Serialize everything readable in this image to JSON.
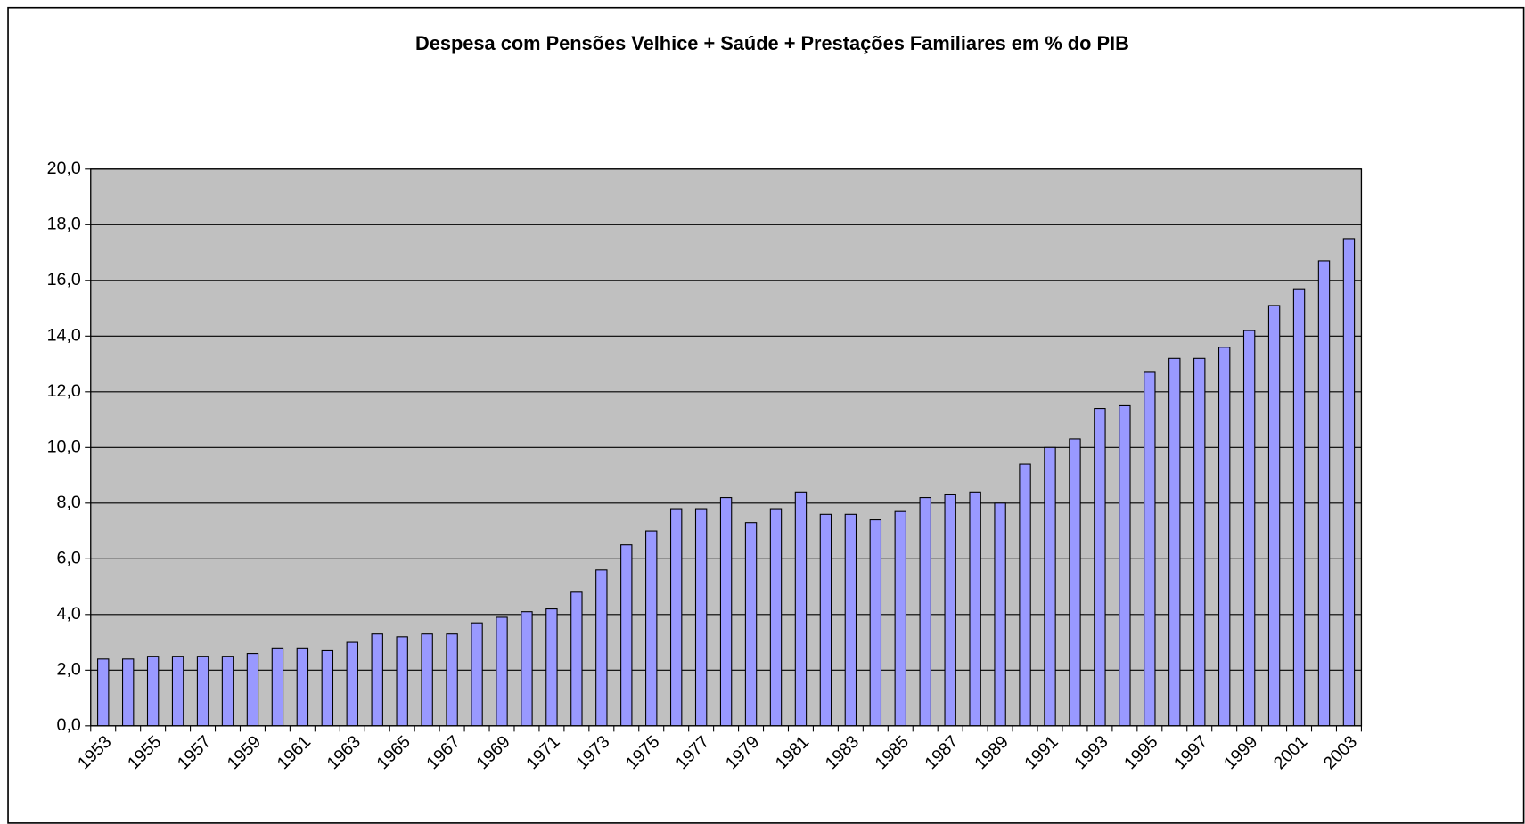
{
  "chart_data": {
    "type": "bar",
    "title": "Despesa com Pensões Velhice + Saúde + Prestações Familiares em % do PIB",
    "categories": [
      "1953",
      null,
      "1955",
      null,
      "1957",
      null,
      "1959",
      null,
      "1961",
      null,
      "1963",
      null,
      "1965",
      null,
      "1967",
      null,
      "1969",
      null,
      "1971",
      null,
      "1973",
      null,
      "1975",
      null,
      "1977",
      null,
      "1979",
      null,
      "1981",
      null,
      "1983",
      null,
      "1985",
      null,
      "1987",
      null,
      "1989",
      null,
      "1991",
      null,
      "1993",
      null,
      "1995",
      null,
      "1997",
      null,
      "1999",
      null,
      "2001",
      null,
      "2003"
    ],
    "values": [
      2.4,
      2.4,
      2.5,
      2.5,
      2.5,
      2.5,
      2.6,
      2.8,
      2.8,
      2.7,
      3.0,
      3.3,
      3.2,
      3.3,
      3.3,
      3.7,
      3.9,
      4.1,
      4.2,
      4.8,
      5.6,
      6.5,
      7.0,
      7.8,
      7.8,
      8.2,
      7.3,
      7.8,
      8.4,
      7.6,
      7.6,
      7.4,
      7.7,
      8.2,
      8.3,
      8.4,
      8.0,
      9.4,
      10.0,
      10.3,
      11.4,
      11.5,
      12.7,
      13.2,
      13.2,
      13.6,
      14.2,
      15.1,
      15.7,
      16.7,
      17.5
    ],
    "color": "#9999ff",
    "plot_background": "#c0c0c0",
    "ylim": [
      0,
      20
    ],
    "yticks": [
      {
        "value": 0,
        "label": "0,0"
      },
      {
        "value": 2,
        "label": "2,0"
      },
      {
        "value": 4,
        "label": "4,0"
      },
      {
        "value": 6,
        "label": "6,0"
      },
      {
        "value": 8,
        "label": "8,0"
      },
      {
        "value": 10,
        "label": "10,0"
      },
      {
        "value": 12,
        "label": "12,0"
      },
      {
        "value": 14,
        "label": "14,0"
      },
      {
        "value": 16,
        "label": "16,0"
      },
      {
        "value": 18,
        "label": "18,0"
      },
      {
        "value": 20,
        "label": "20,0"
      }
    ],
    "grid": true
  }
}
